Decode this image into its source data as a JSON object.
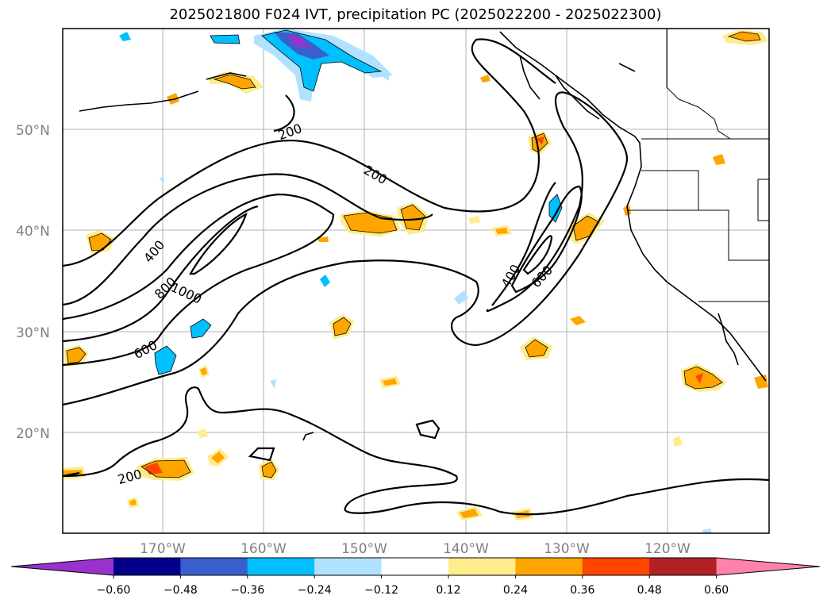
{
  "title": "2025021800 F024 IVT, precipitation PC (2025022200 - 2025022300)",
  "lat_labels": [
    "50°N",
    "40°N",
    "30°N",
    "20°N"
  ],
  "lon_labels": [
    "170°W",
    "160°W",
    "150°W",
    "140°W",
    "130°W",
    "120°W"
  ],
  "contour_labels": [
    "200",
    "200",
    "400",
    "800",
    "1000",
    "600",
    "400",
    "600",
    "200"
  ],
  "colorbar": {
    "colors": [
      "#9932cc",
      "#00008b",
      "#3a5fcd",
      "#00bfff",
      "#b0e2ff",
      "#ffffff",
      "#ffec8b",
      "#ffa500",
      "#ff4500",
      "#b22222",
      "#ff82ab"
    ],
    "tick_labels": [
      "−0.60",
      "−0.48",
      "−0.36",
      "−0.24",
      "−0.12",
      "0.12",
      "0.24",
      "0.36",
      "0.48",
      "0.60"
    ]
  }
}
